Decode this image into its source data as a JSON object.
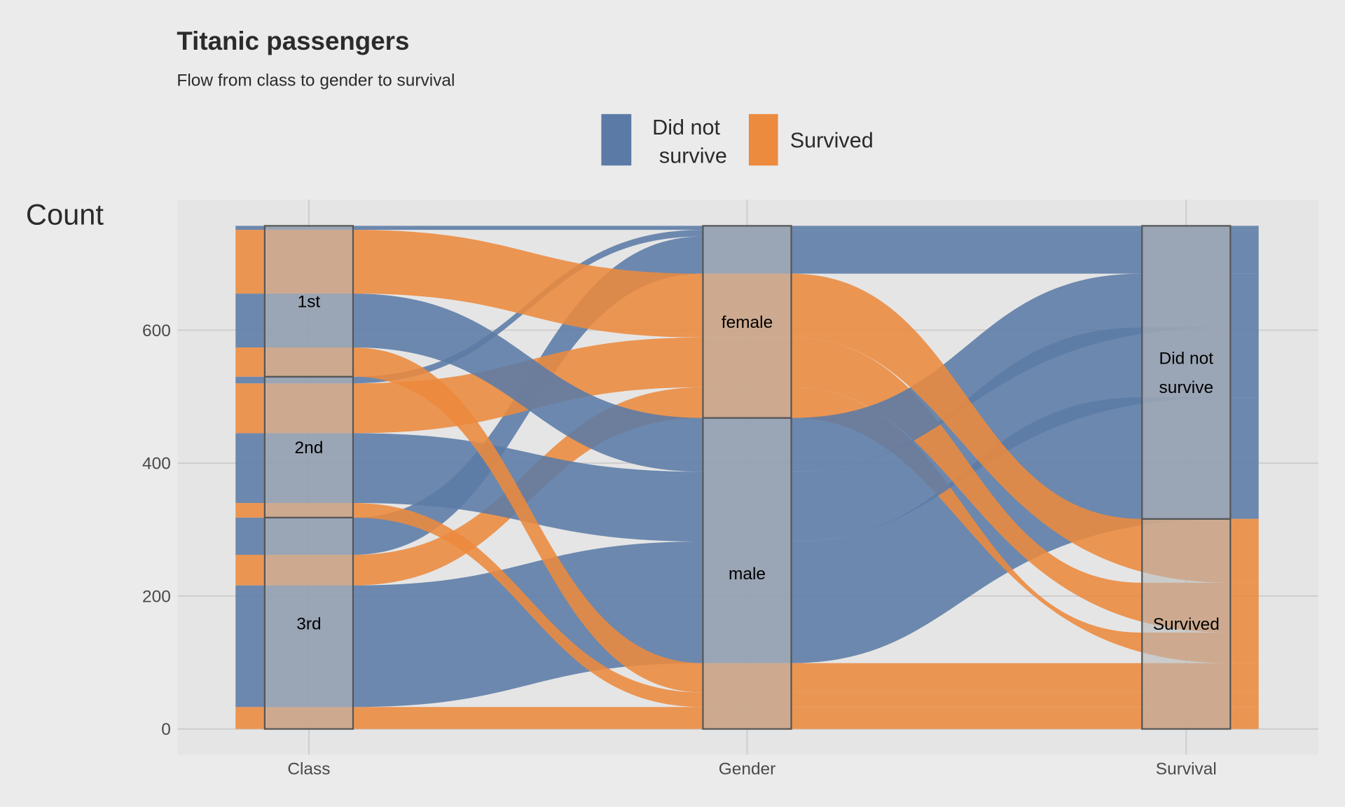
{
  "chart_data": {
    "type": "alluvial",
    "title": "Titanic passengers",
    "subtitle": "Flow from class to gender to survival",
    "ylabel": "Count",
    "ylim": [
      0,
      757
    ],
    "yticks": [
      0,
      200,
      400,
      600
    ],
    "grid": true,
    "legend": {
      "placement": "top",
      "entries": [
        {
          "label": "Did not survive",
          "color": "#5B7BA6"
        },
        {
          "label": "Survived",
          "color": "#EC8A3E"
        }
      ]
    },
    "axes": [
      {
        "name": "Class",
        "levels": [
          "3rd",
          "2nd",
          "1st"
        ]
      },
      {
        "name": "Gender",
        "levels": [
          "male",
          "female"
        ]
      },
      {
        "name": "Survival",
        "levels": [
          "Survived",
          "Did not survive"
        ]
      }
    ],
    "alluvia": [
      {
        "class": "3rd",
        "gender": "male",
        "survival": "Survived",
        "count": 33
      },
      {
        "class": "3rd",
        "gender": "male",
        "survival": "Did not survive",
        "count": 183
      },
      {
        "class": "3rd",
        "gender": "female",
        "survival": "Survived",
        "count": 46
      },
      {
        "class": "3rd",
        "gender": "female",
        "survival": "Did not survive",
        "count": 56
      },
      {
        "class": "2nd",
        "gender": "male",
        "survival": "Survived",
        "count": 22
      },
      {
        "class": "2nd",
        "gender": "male",
        "survival": "Did not survive",
        "count": 105
      },
      {
        "class": "2nd",
        "gender": "female",
        "survival": "Survived",
        "count": 75
      },
      {
        "class": "2nd",
        "gender": "female",
        "survival": "Did not survive",
        "count": 10
      },
      {
        "class": "1st",
        "gender": "male",
        "survival": "Survived",
        "count": 44
      },
      {
        "class": "1st",
        "gender": "male",
        "survival": "Did not survive",
        "count": 81
      },
      {
        "class": "1st",
        "gender": "female",
        "survival": "Survived",
        "count": 96
      },
      {
        "class": "1st",
        "gender": "female",
        "survival": "Did not survive",
        "count": 6
      }
    ]
  }
}
